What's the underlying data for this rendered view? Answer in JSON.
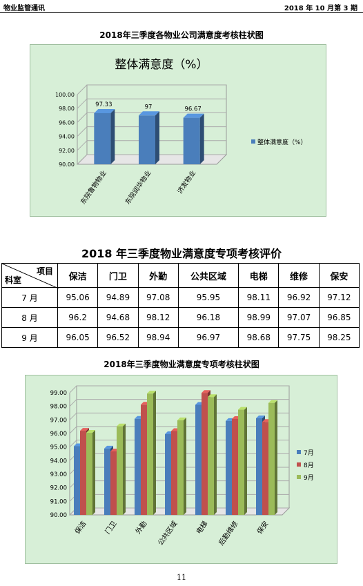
{
  "header": {
    "left": "物业监管通讯",
    "right": "2018 年 10 月第 3 期"
  },
  "chart1": {
    "caption": "2018年三季度各物业公司满意度考核柱状图",
    "chart_data": {
      "type": "bar",
      "title": "整体满意度（%）",
      "categories": [
        "东院鲁物物业",
        "东院润华物业",
        "济发物业"
      ],
      "series": [
        {
          "name": "整体满意度（%）",
          "values": [
            97.33,
            97,
            96.67
          ]
        }
      ],
      "data_labels": [
        "97.33",
        "97",
        "96.67"
      ],
      "ylim": [
        90,
        100
      ],
      "yticks": [
        "90.00",
        "92.00",
        "94.00",
        "96.00",
        "98.00",
        "100.00"
      ],
      "legend": "right",
      "bar_color": "#4a7ebb"
    }
  },
  "table": {
    "title": "2018 年三季度物业满意度专项考核评价",
    "corner_top": "项目",
    "corner_bottom": "科室",
    "headers": [
      "保洁",
      "门卫",
      "外勤",
      "公共区域",
      "电梯",
      "维修",
      "保安"
    ],
    "rows": [
      {
        "label": "7 月",
        "values": [
          "95.06",
          "94.89",
          "97.08",
          "95.95",
          "98.11",
          "96.92",
          "97.12"
        ]
      },
      {
        "label": "8 月",
        "values": [
          "96.2",
          "94.68",
          "98.12",
          "96.18",
          "98.99",
          "97.07",
          "96.85"
        ]
      },
      {
        "label": "9 月",
        "values": [
          "96.05",
          "96.52",
          "98.94",
          "96.97",
          "98.68",
          "97.75",
          "98.25"
        ]
      }
    ]
  },
  "chart2": {
    "caption": "2018年三季度物业满意度专项考核柱状图",
    "chart_data": {
      "type": "bar",
      "categories": [
        "保洁",
        "门卫",
        "外勤",
        "公共区域",
        "电梯",
        "后勤维修",
        "保安"
      ],
      "series": [
        {
          "name": "7月",
          "values": [
            95.06,
            94.89,
            97.08,
            95.95,
            98.11,
            96.92,
            97.12
          ],
          "color": "#4a7ebb"
        },
        {
          "name": "8月",
          "values": [
            96.2,
            94.68,
            98.12,
            96.18,
            98.99,
            97.07,
            96.85
          ],
          "color": "#c0504d"
        },
        {
          "name": "9月",
          "values": [
            96.05,
            96.52,
            98.94,
            96.97,
            98.68,
            97.75,
            98.25
          ],
          "color": "#9bbb59"
        }
      ],
      "ylim": [
        90,
        99
      ],
      "yticks": [
        "90.00",
        "91.00",
        "92.00",
        "93.00",
        "94.00",
        "95.00",
        "96.00",
        "97.00",
        "98.00",
        "99.00"
      ],
      "legend": "right"
    }
  },
  "page_number": "11"
}
